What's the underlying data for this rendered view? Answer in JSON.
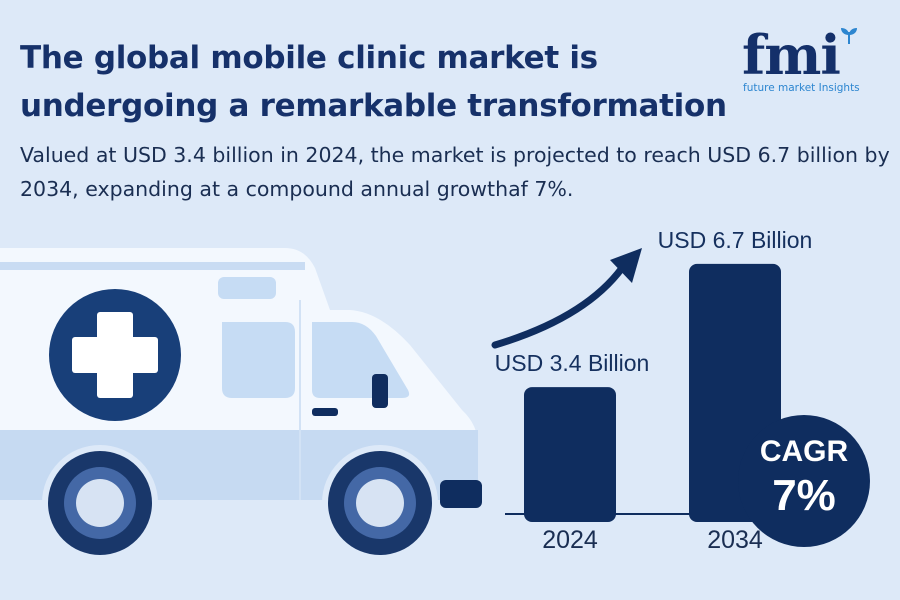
{
  "header": {
    "title": "The global mobile clinic market is undergoing a remarkable transformation",
    "subtitle": "Valued at USD 3.4 billion in 2024, the market is projected to reach USD 6.7 billion by 2034, expanding at a compound annual growthaf 7%."
  },
  "logo": {
    "mark": "fmi",
    "tagline": "future market Insights"
  },
  "colors": {
    "background": "#dde9f8",
    "navy": "#0f2d5f",
    "logo_accent": "#2d86d0"
  },
  "icons": [
    "ambulance-icon",
    "medical-cross-icon",
    "growth-arrow-icon",
    "leaf-icon"
  ],
  "chart_data": {
    "type": "bar",
    "categories": [
      "2024",
      "2034"
    ],
    "values": [
      3.4,
      6.7
    ],
    "value_labels": [
      "USD 3.4 Billion",
      "USD 6.7 Billion"
    ],
    "unit": "USD Billion",
    "ylim": [
      0,
      7.5
    ],
    "grid": false,
    "legend": "none",
    "color": "#0f2d5f",
    "annotations": [
      {
        "type": "arrow",
        "from": "2024",
        "to": "2034"
      }
    ]
  },
  "cagr": {
    "label": "CAGR",
    "value": "7%"
  }
}
